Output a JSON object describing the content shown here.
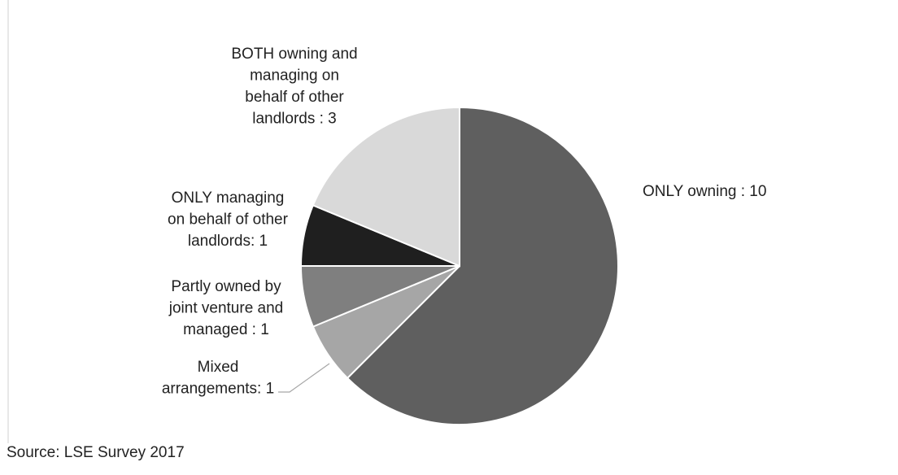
{
  "chart_data": {
    "type": "pie",
    "categories": [
      "ONLY owning",
      "Mixed arrangements",
      "Partly owned by joint venture and managed",
      "ONLY managing on behalf of other landlords",
      "BOTH owning and managing on behalf of other landlords"
    ],
    "values": [
      10,
      1,
      1,
      1,
      3
    ],
    "value_labels": [
      [
        "ONLY owning : 10"
      ],
      [
        "Mixed",
        "arrangements: 1"
      ],
      [
        "Partly owned by",
        "joint venture and",
        "managed : 1"
      ],
      [
        "ONLY managing",
        "on behalf of other",
        "landlords: 1"
      ],
      [
        "BOTH owning and",
        "managing on",
        "behalf of other",
        "landlords : 3"
      ]
    ],
    "colors": [
      "#5f5f5f",
      "#a6a6a6",
      "#7f7f7f",
      "#1f1f1f",
      "#d9d9d9"
    ],
    "source": "Source: LSE Survey 2017"
  }
}
